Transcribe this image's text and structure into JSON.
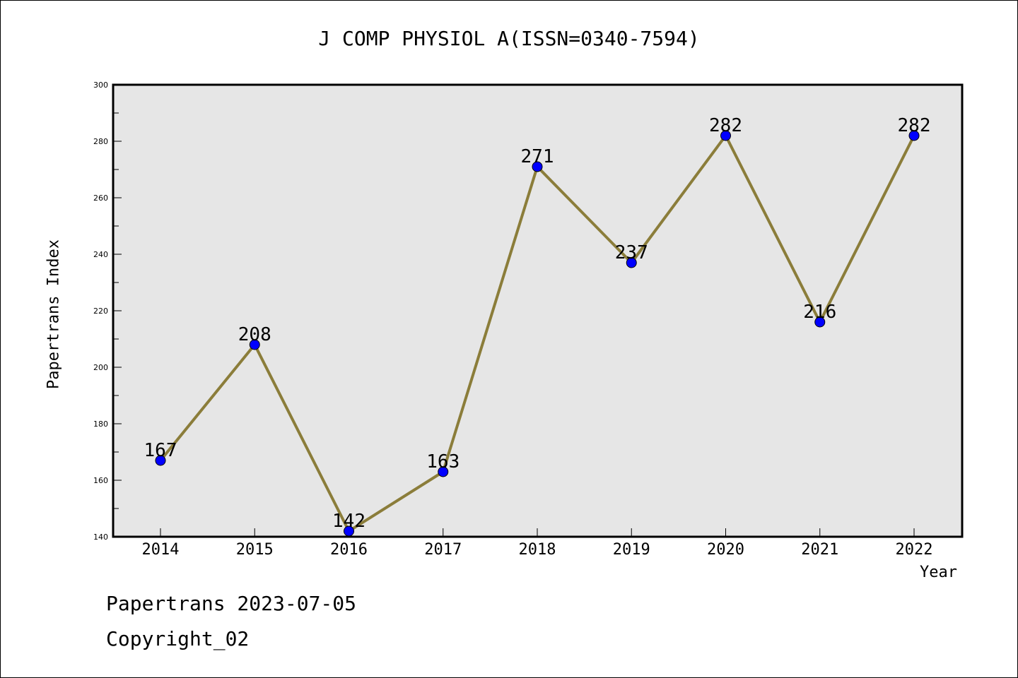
{
  "chart_data": {
    "type": "line",
    "title": "J COMP PHYSIOL A(ISSN=0340-7594)",
    "xlabel": "Year",
    "ylabel": "Papertrans Index",
    "x": [
      "2014",
      "2015",
      "2016",
      "2017",
      "2018",
      "2019",
      "2020",
      "2021",
      "2022"
    ],
    "series": [
      {
        "name": "Papertrans Index",
        "values": [
          167,
          208,
          142,
          163,
          271,
          237,
          282,
          216,
          282
        ]
      }
    ],
    "ylim": [
      140,
      300
    ],
    "yticks": [
      140,
      160,
      180,
      200,
      220,
      240,
      260,
      280,
      300
    ],
    "grid": false,
    "line_color": "#8b7d3a",
    "marker_color": "#0000ff",
    "background": "#e6e6e6"
  },
  "footer": {
    "line1": "Papertrans 2023-07-05",
    "line2": "Copyright_02"
  }
}
